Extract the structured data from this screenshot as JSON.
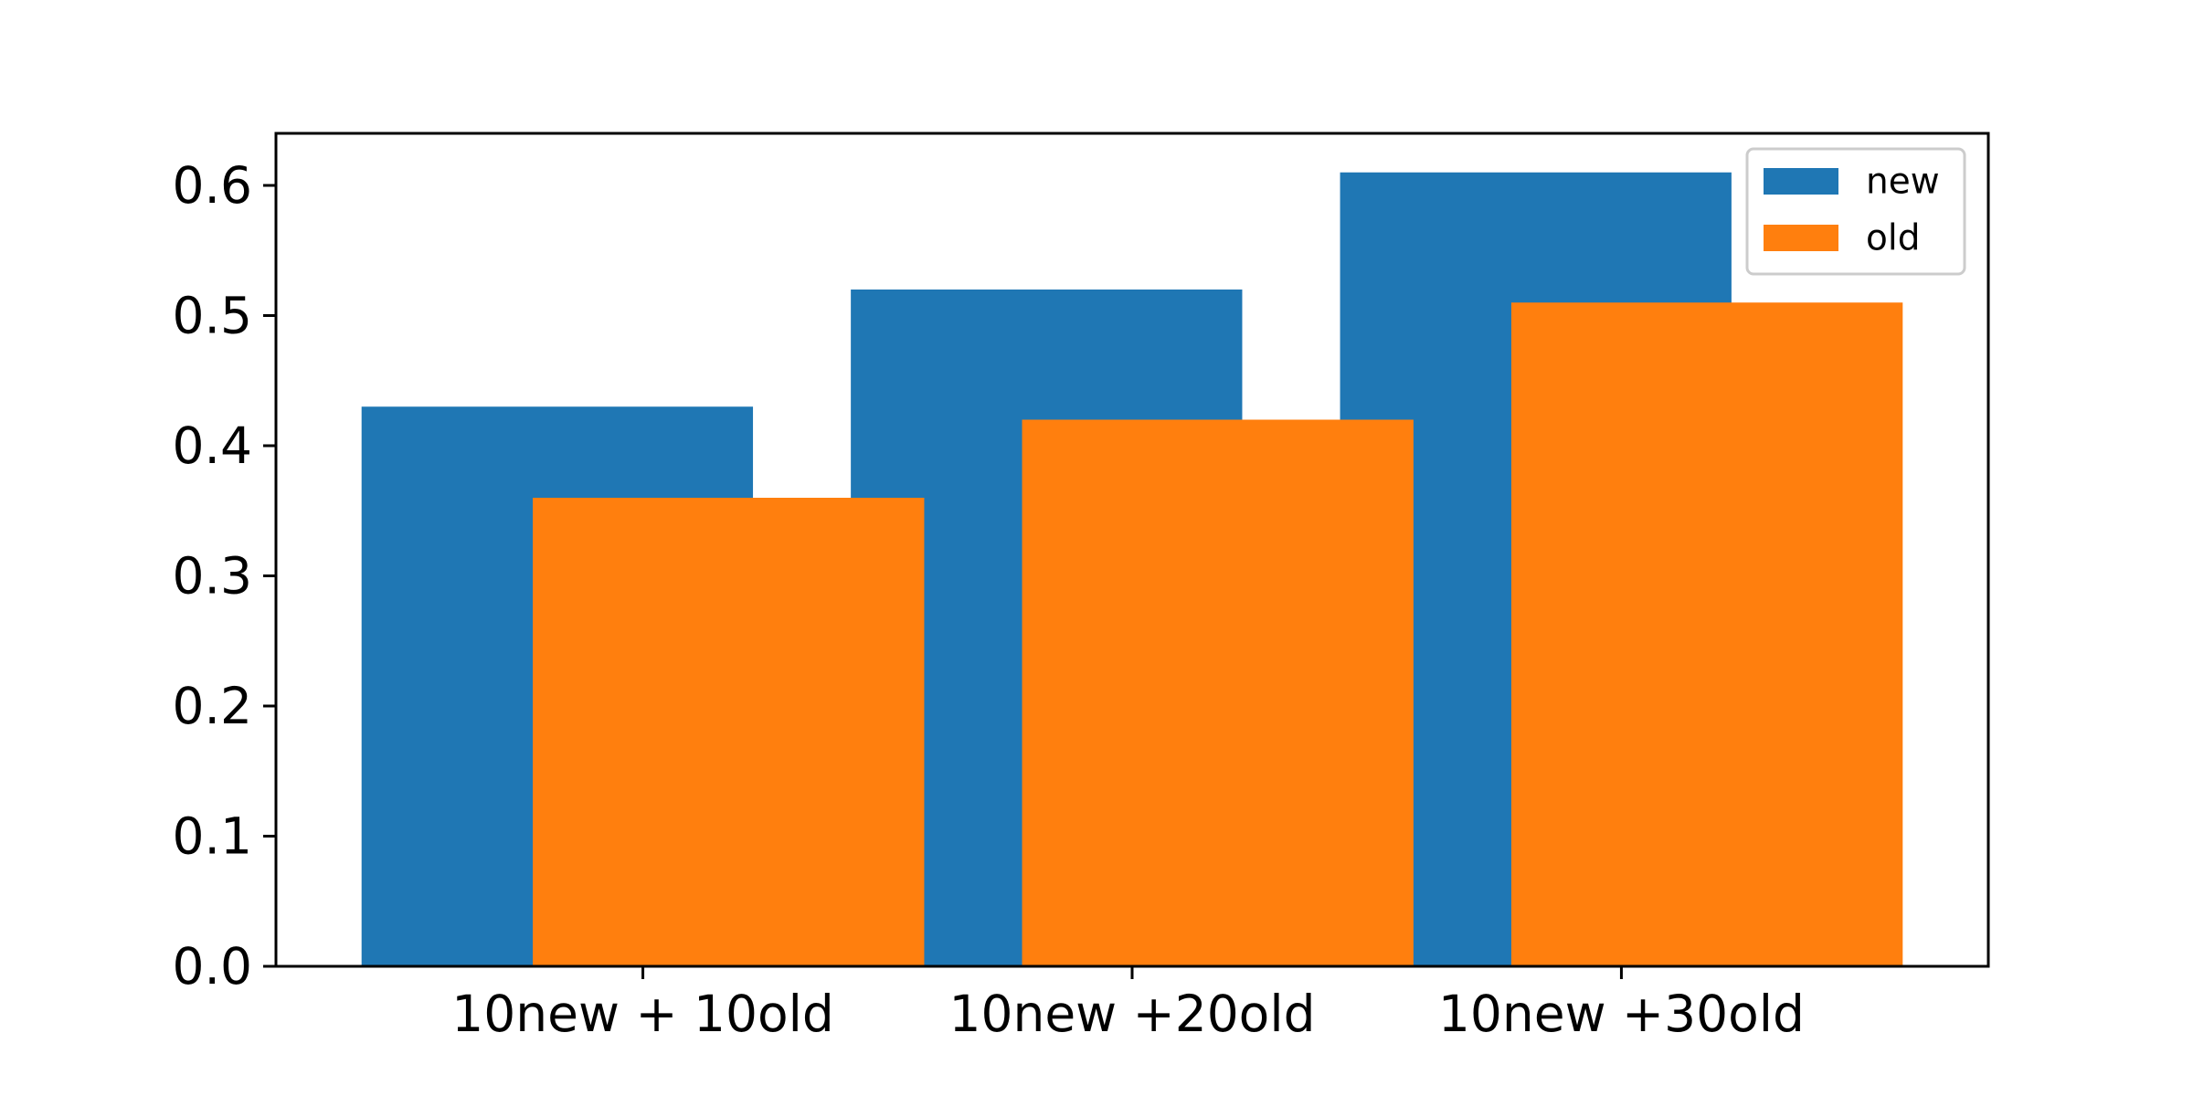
{
  "chart_data": {
    "type": "bar",
    "title": "",
    "xlabel": "",
    "ylabel": "",
    "categories": [
      "10new + 10old",
      "10new +20old",
      "10new +30old"
    ],
    "series": [
      {
        "name": "new",
        "values": [
          0.43,
          0.52,
          0.61
        ],
        "color": "#1f77b4"
      },
      {
        "name": "old",
        "values": [
          0.36,
          0.42,
          0.51
        ],
        "color": "#ff7f0e"
      }
    ],
    "yticks": [
      0.0,
      0.1,
      0.2,
      0.3,
      0.4,
      0.5,
      0.6
    ],
    "ytick_labels": [
      "0.0",
      "0.1",
      "0.2",
      "0.3",
      "0.4",
      "0.5",
      "0.6"
    ],
    "ylim": [
      0,
      0.64
    ],
    "grid": false,
    "legend_position": "top-right",
    "bars_overlap": true
  }
}
